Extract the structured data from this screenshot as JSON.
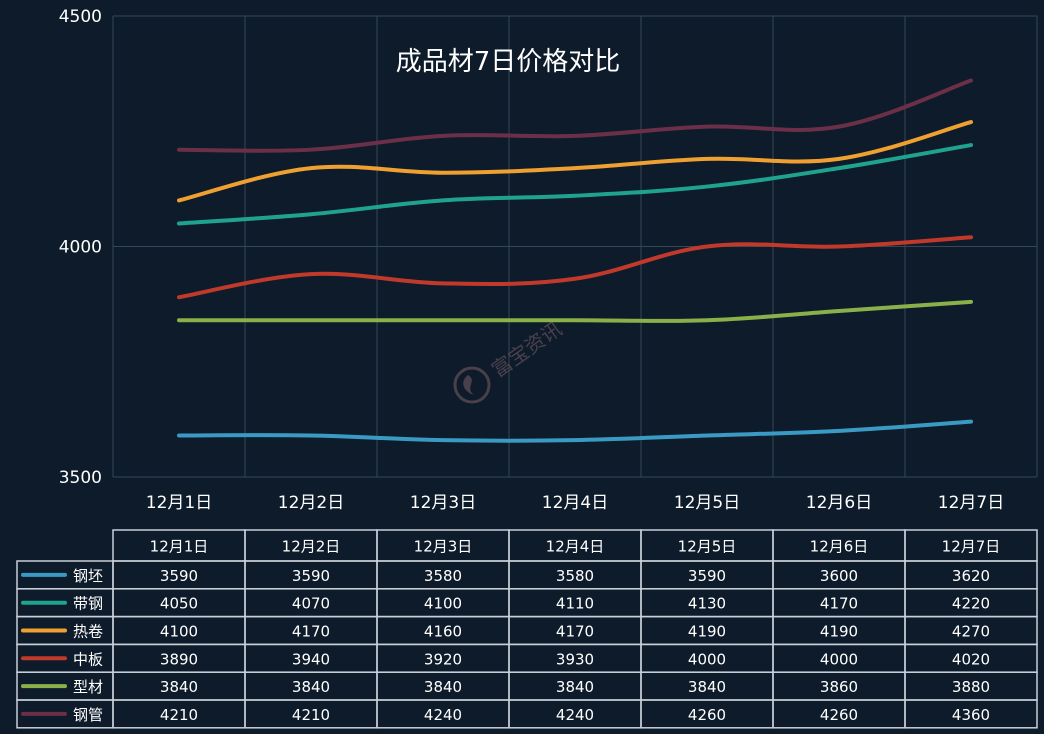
{
  "chart_data": {
    "type": "line",
    "title": "成品材7日价格对比",
    "categories": [
      "12月1日",
      "12月2日",
      "12月3日",
      "12月4日",
      "12月5日",
      "12月6日",
      "12月7日"
    ],
    "ylim": [
      3500,
      4500
    ],
    "yticks": [
      3500,
      4000,
      4500
    ],
    "grid": true,
    "series": [
      {
        "name": "钢坯",
        "color": "#3a9ac4",
        "values": [
          3590,
          3590,
          3580,
          3580,
          3590,
          3600,
          3620
        ]
      },
      {
        "name": "带钢",
        "color": "#1fa38f",
        "values": [
          4050,
          4070,
          4100,
          4110,
          4130,
          4170,
          4220
        ]
      },
      {
        "name": "热卷",
        "color": "#f0a030",
        "values": [
          4100,
          4170,
          4160,
          4170,
          4190,
          4190,
          4270
        ]
      },
      {
        "name": "中板",
        "color": "#c0392b",
        "values": [
          3890,
          3940,
          3920,
          3930,
          4000,
          4000,
          4020
        ]
      },
      {
        "name": "型材",
        "color": "#8ab04a",
        "values": [
          3840,
          3840,
          3840,
          3840,
          3840,
          3860,
          3880
        ]
      },
      {
        "name": "钢管",
        "color": "#6b3048",
        "values": [
          4210,
          4210,
          4240,
          4240,
          4260,
          4260,
          4360
        ]
      }
    ],
    "has_data_table": true
  },
  "watermark": {
    "text": "富宝资讯",
    "color": "#5a4a55"
  },
  "colors": {
    "background": "#0d1b2a",
    "grid": "#33475b",
    "table_border": "#c8d0d8"
  }
}
